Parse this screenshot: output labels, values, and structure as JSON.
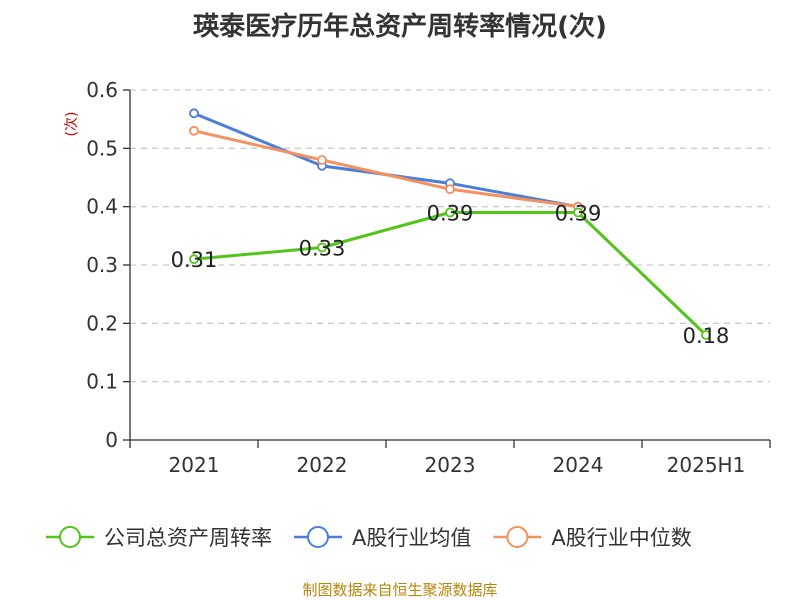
{
  "chart_data": {
    "type": "line",
    "title": "瑛泰医疗历年总资产周转率情况(次)",
    "ylabel": "(次)",
    "xlabel": "",
    "categories": [
      "2021",
      "2022",
      "2023",
      "2024",
      "2025H1"
    ],
    "ylim": [
      0,
      0.6
    ],
    "yticks": [
      0,
      0.1,
      0.2,
      0.3,
      0.4,
      0.5,
      0.6
    ],
    "ytick_labels": [
      "0",
      "0.1",
      "0.2",
      "0.3",
      "0.4",
      "0.5",
      "0.6"
    ],
    "grid": true,
    "legend_position": "bottom",
    "series": [
      {
        "name": "公司总资产周转率",
        "color": "#52c41a",
        "values": [
          0.31,
          0.33,
          0.39,
          0.39,
          0.18
        ],
        "labels": [
          "0.31",
          "0.33",
          "0.39",
          "0.39",
          "0.18"
        ]
      },
      {
        "name": "A股行业均值",
        "color": "#4a7fd9",
        "values": [
          0.56,
          0.47,
          0.44,
          0.4,
          null
        ]
      },
      {
        "name": "A股行业中位数",
        "color": "#f4915e",
        "values": [
          0.53,
          0.48,
          0.43,
          0.4,
          null
        ]
      }
    ]
  },
  "source": "制图数据来自恒生聚源数据库",
  "colors": {
    "title": "#333333",
    "axis": "#333333",
    "grid": "#cccccc",
    "ylabel": "#cc0000",
    "source": "#b8860b"
  }
}
